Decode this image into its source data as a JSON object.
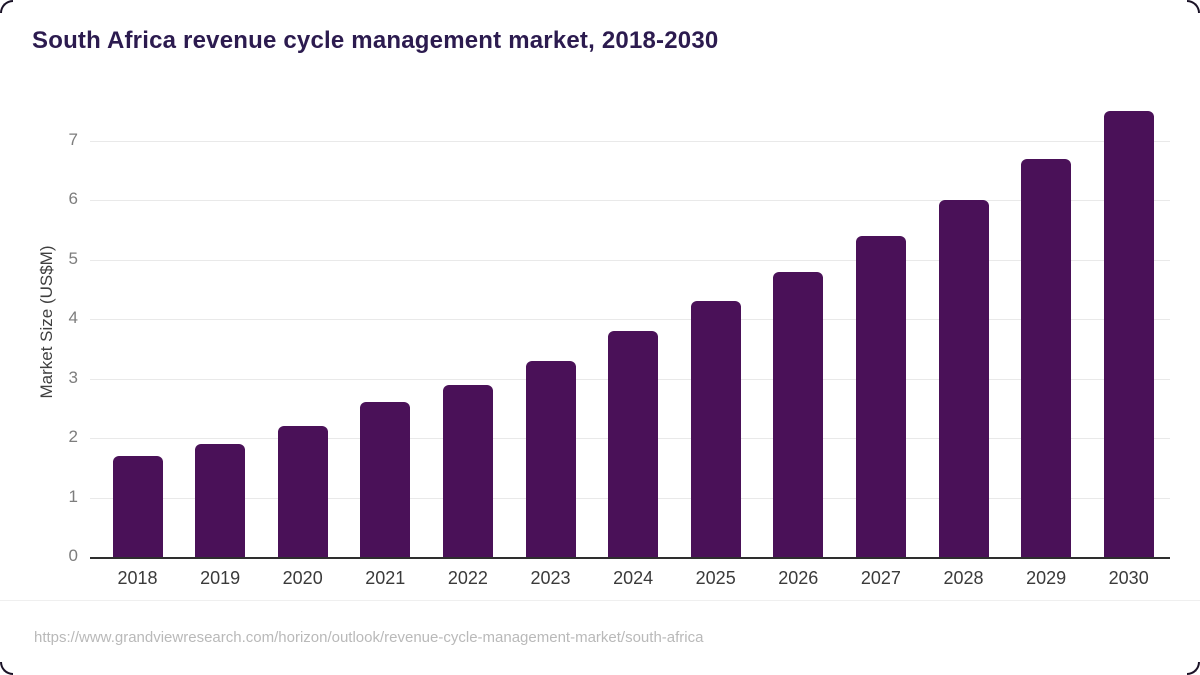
{
  "chart_data": {
    "type": "bar",
    "title": "South Africa revenue cycle management market, 2018-2030",
    "categories": [
      "2018",
      "2019",
      "2020",
      "2021",
      "2022",
      "2023",
      "2024",
      "2025",
      "2026",
      "2027",
      "2028",
      "2029",
      "2030"
    ],
    "values": [
      1.7,
      1.9,
      2.2,
      2.6,
      2.9,
      3.3,
      3.8,
      4.3,
      4.8,
      5.4,
      6.0,
      6.7,
      7.5
    ],
    "xlabel": "",
    "ylabel": "Market Size (US$M)",
    "ylim": [
      0,
      7.6
    ],
    "yticks": [
      0,
      1,
      2,
      3,
      4,
      5,
      6,
      7
    ],
    "grid": true,
    "legend": "none",
    "colors": {
      "bar": "#4a1158",
      "title": "#2c1b4f",
      "gridline": "#e9e9e9",
      "axis_line": "#2e2e2e",
      "y_tick_label": "#7d7d7d",
      "x_tick_label": "#3a3a3a"
    }
  },
  "footer": {
    "source_url": "https://www.grandviewresearch.com/horizon/outlook/revenue-cycle-management-market/south-africa"
  }
}
